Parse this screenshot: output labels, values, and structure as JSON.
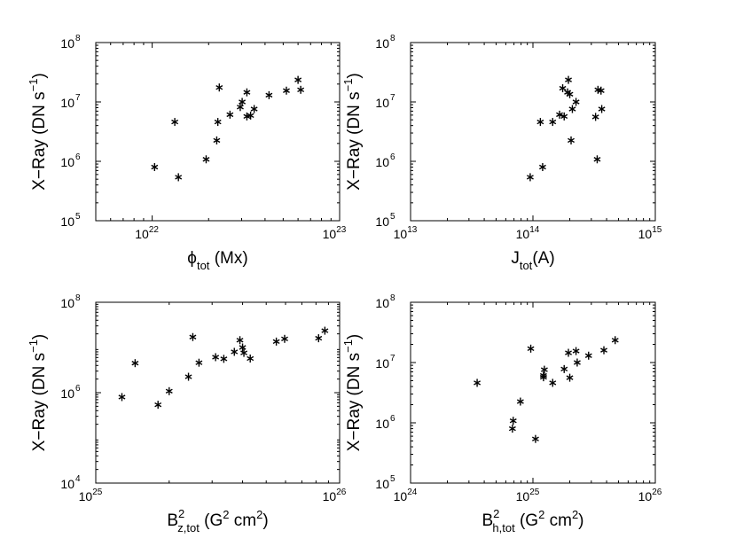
{
  "chart_data": [
    {
      "type": "scatter",
      "xscale": "log",
      "yscale": "log",
      "xlim": [
        5e+21,
        1e+23
      ],
      "ylim": [
        100000.0,
        100000000.0
      ],
      "xticks": [
        {
          "mant": "10",
          "exp": "22"
        },
        {
          "mant": "10",
          "exp": "23"
        }
      ],
      "yticks": [
        {
          "mant": "10",
          "exp": "5"
        },
        {
          "mant": "10",
          "exp": "6"
        },
        {
          "mant": "10",
          "exp": "7"
        },
        {
          "mant": "10",
          "exp": "8"
        }
      ],
      "xlabel": {
        "main": "ϕ",
        "sub": "tot",
        "rest": " (Mx)"
      },
      "ylabel": {
        "main": "X−Ray (DN s",
        "sup": "−1",
        "rest": ")"
      },
      "marker": "*",
      "points": [
        [
          1.03e+22,
          800000.0
        ],
        [
          1.32e+22,
          4600000.0
        ],
        [
          1.38e+22,
          540000.0
        ],
        [
          1.94e+22,
          1080000.0
        ],
        [
          2.21e+22,
          2250000.0
        ],
        [
          2.24e+22,
          4600000.0
        ],
        [
          2.28e+22,
          17500000.0
        ],
        [
          2.6e+22,
          6100000.0
        ],
        [
          2.95e+22,
          8200000.0
        ],
        [
          3.02e+22,
          10000000.0
        ],
        [
          3.2e+22,
          14500000.0
        ],
        [
          3.2e+22,
          5700000.0
        ],
        [
          3.35e+22,
          5900000.0
        ],
        [
          3.5e+22,
          7600000.0
        ],
        [
          4.2e+22,
          13000000.0
        ],
        [
          5.2e+22,
          15500000.0
        ],
        [
          6e+22,
          23500000.0
        ],
        [
          6.2e+22,
          16000000.0
        ]
      ]
    },
    {
      "type": "scatter",
      "xscale": "log",
      "yscale": "log",
      "xlim": [
        10000000000000.0,
        1000000000000000.0
      ],
      "ylim": [
        100000.0,
        100000000.0
      ],
      "xticks": [
        {
          "mant": "10",
          "exp": "13"
        },
        {
          "mant": "10",
          "exp": "14"
        },
        {
          "mant": "10",
          "exp": "15"
        }
      ],
      "yticks": [
        {
          "mant": "10",
          "exp": "5"
        },
        {
          "mant": "10",
          "exp": "6"
        },
        {
          "mant": "10",
          "exp": "7"
        },
        {
          "mant": "10",
          "exp": "8"
        }
      ],
      "xlabel": {
        "main": "J",
        "sub": "tot",
        "rest": "(A)"
      },
      "ylabel": {
        "main": "X−Ray (DN s",
        "sup": "−1",
        "rest": ")"
      },
      "marker": "*",
      "points": [
        [
          95000000000000.0,
          540000.0
        ],
        [
          115000000000000.0,
          4600000.0
        ],
        [
          120000000000000.0,
          800000.0
        ],
        [
          145000000000000.0,
          4600000.0
        ],
        [
          165000000000000.0,
          6100000.0
        ],
        [
          175000000000000.0,
          17000000.0
        ],
        [
          180000000000000.0,
          5700000.0
        ],
        [
          192000000000000.0,
          14500000.0
        ],
        [
          195000000000000.0,
          23500000.0
        ],
        [
          200000000000000.0,
          13500000.0
        ],
        [
          205000000000000.0,
          2250000.0
        ],
        [
          210000000000000.0,
          7600000.0
        ],
        [
          225000000000000.0,
          10000000.0
        ],
        [
          325000000000000.0,
          5600000.0
        ],
        [
          335000000000000.0,
          1080000.0
        ],
        [
          340000000000000.0,
          16000000.0
        ],
        [
          360000000000000.0,
          15500000.0
        ],
        [
          365000000000000.0,
          7600000.0
        ]
      ]
    },
    {
      "type": "scatter",
      "xscale": "log",
      "yscale": "log",
      "xlim": [
        1e+25,
        1e+26
      ],
      "ylim": [
        10000.0,
        100000000.0
      ],
      "xticks": [
        {
          "mant": "10",
          "exp": "25"
        },
        {
          "mant": "10",
          "exp": "26"
        }
      ],
      "yticks": [
        {
          "mant": "10",
          "exp": "4"
        },
        {
          "mant": "10",
          "exp": "6"
        },
        {
          "mant": "10",
          "exp": "8"
        }
      ],
      "xlabel": {
        "main": "B",
        "sup": "2",
        "sub": "z,tot",
        "rest": " (G",
        "sup2": "2",
        "rest2": " cm",
        "sup3": "2",
        "rest3": ")"
      },
      "ylabel": {
        "main": "X−Ray (DN s",
        "sup": "−1",
        "rest": ")"
      },
      "marker": "*",
      "points": [
        [
          1.28e+25,
          800000.0
        ],
        [
          1.45e+25,
          4500000.0
        ],
        [
          1.8e+25,
          540000.0
        ],
        [
          2e+25,
          1080000.0
        ],
        [
          2.4e+25,
          2250000.0
        ],
        [
          2.5e+25,
          17000000.0
        ],
        [
          2.65e+25,
          4600000.0
        ],
        [
          3.1e+25,
          6100000.0
        ],
        [
          3.35e+25,
          5600000.0
        ],
        [
          3.7e+25,
          8000000.0
        ],
        [
          3.9e+25,
          14500000.0
        ],
        [
          4e+25,
          10000000.0
        ],
        [
          4.05e+25,
          7600000.0
        ],
        [
          4.3e+25,
          5700000.0
        ],
        [
          5.5e+25,
          13500000.0
        ],
        [
          5.95e+25,
          15500000.0
        ],
        [
          8.2e+25,
          16000000.0
        ],
        [
          8.7e+25,
          23500000.0
        ]
      ]
    },
    {
      "type": "scatter",
      "xscale": "log",
      "yscale": "log",
      "xlim": [
        1e+24,
        1e+26
      ],
      "ylim": [
        100000.0,
        100000000.0
      ],
      "xticks": [
        {
          "mant": "10",
          "exp": "24"
        },
        {
          "mant": "10",
          "exp": "25"
        },
        {
          "mant": "10",
          "exp": "26"
        }
      ],
      "yticks": [
        {
          "mant": "10",
          "exp": "5"
        },
        {
          "mant": "10",
          "exp": "6"
        },
        {
          "mant": "10",
          "exp": "7"
        },
        {
          "mant": "10",
          "exp": "8"
        }
      ],
      "xlabel": {
        "main": "B",
        "sup": "2",
        "sub": "h,tot",
        "rest": " (G",
        "sup2": "2",
        "rest2": " cm",
        "sup3": "2",
        "rest3": ")"
      },
      "ylabel": {
        "main": "X−Ray (DN s",
        "sup": "−1",
        "rest": ")"
      },
      "marker": "*",
      "points": [
        [
          3.5e+24,
          4600000.0
        ],
        [
          6.8e+24,
          800000.0
        ],
        [
          6.9e+24,
          1080000.0
        ],
        [
          7.9e+24,
          2250000.0
        ],
        [
          9.6e+24,
          17000000.0
        ],
        [
          1.05e+25,
          540000.0
        ],
        [
          1.22e+25,
          5700000.0
        ],
        [
          1.22e+25,
          6100000.0
        ],
        [
          1.24e+25,
          7600000.0
        ],
        [
          1.45e+25,
          4600000.0
        ],
        [
          1.8e+25,
          7800000.0
        ],
        [
          1.95e+25,
          14500000.0
        ],
        [
          2e+25,
          5600000.0
        ],
        [
          2.25e+25,
          15500000.0
        ],
        [
          2.3e+25,
          10000000.0
        ],
        [
          2.85e+25,
          13000000.0
        ],
        [
          3.8e+25,
          16000000.0
        ],
        [
          4.7e+25,
          23500000.0
        ]
      ]
    }
  ]
}
